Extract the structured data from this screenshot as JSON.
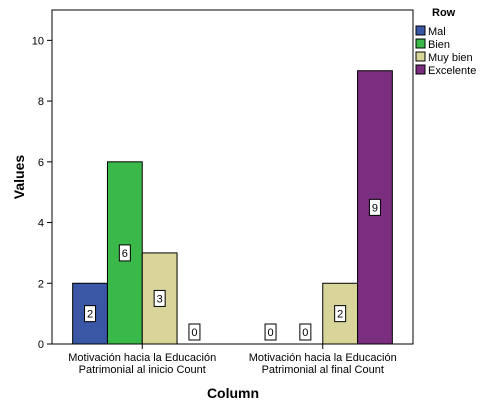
{
  "chart_data": {
    "type": "bar",
    "categories": [
      [
        "Motivación hacia la Educación",
        "Patrimonial al inicio Count"
      ],
      [
        "Motivación hacia la Educación",
        "Patrimonial al final Count"
      ]
    ],
    "series": [
      {
        "name": "Mal",
        "color": "#3a57a6",
        "values": [
          2,
          0
        ]
      },
      {
        "name": "Bien",
        "color": "#3bb84a",
        "values": [
          6,
          0
        ]
      },
      {
        "name": "Muy bien",
        "color": "#d8d49a",
        "values": [
          3,
          2
        ]
      },
      {
        "name": "Excelente",
        "color": "#7b2d7f",
        "values": [
          0,
          9
        ]
      }
    ],
    "xlabel": "Column",
    "ylabel": "Values",
    "ylim": [
      0,
      11
    ],
    "yticks": [
      0,
      2,
      4,
      6,
      8,
      10
    ],
    "legend_title": "Row",
    "legend_position": "top-right",
    "grid": false
  }
}
